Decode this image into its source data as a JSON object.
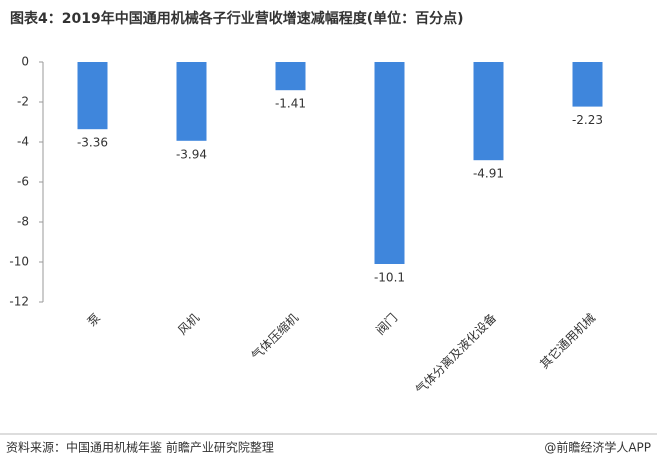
{
  "chart_data": {
    "type": "bar",
    "title": "图表4：2019年中国通用机械各子行业营收增速减幅程度(单位：百分点)",
    "categories": [
      "泵",
      "风机",
      "气体压缩机",
      "阀门",
      "气体分离及液化设备",
      "其它通用机械"
    ],
    "values": [
      -3.36,
      -3.94,
      -1.41,
      -10.1,
      -4.91,
      -2.23
    ],
    "color": "#3f86dc",
    "ylim": [
      -12,
      0
    ],
    "yticks": [
      0,
      -2,
      -4,
      -6,
      -8,
      -10,
      -12
    ],
    "source": "资料来源：中国通用机械年鉴 前瞻产业研究院整理",
    "credit": "@前瞻经济学人APP"
  }
}
